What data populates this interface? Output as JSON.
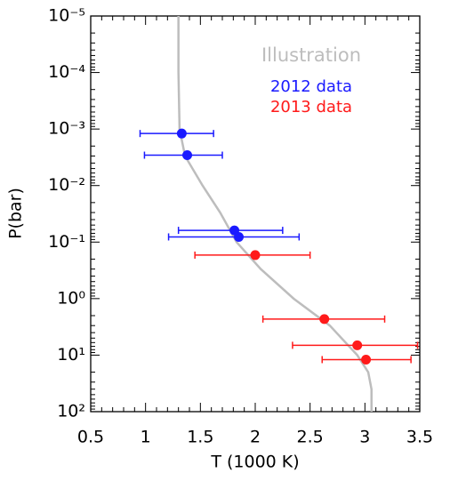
{
  "chart_data": {
    "type": "scatter",
    "xlabel": "T (1000 K)",
    "ylabel": "P(bar)",
    "xlim": [
      0.5,
      3.5
    ],
    "xticks": [
      0.5,
      1.0,
      1.5,
      2.0,
      2.5,
      3.0,
      3.5
    ],
    "ylim": [
      1e-05,
      100
    ],
    "yscale": "log",
    "yinverted": true,
    "yticks": [
      {
        "value": 1e-05,
        "label": "10⁻⁵"
      },
      {
        "value": 0.0001,
        "label": "10⁻⁴"
      },
      {
        "value": 0.001,
        "label": "10⁻³"
      },
      {
        "value": 0.01,
        "label": "10⁻²"
      },
      {
        "value": 0.1,
        "label": "10⁻¹"
      },
      {
        "value": 1,
        "label": "10⁰"
      },
      {
        "value": 10,
        "label": "10¹"
      },
      {
        "value": 100,
        "label": "10²"
      }
    ],
    "legend": "upper right",
    "series": [
      {
        "name": "Illustration",
        "style": "line",
        "color": "#bdbdbd",
        "x": [
          1.3,
          1.3,
          1.31,
          1.36,
          1.52,
          1.68,
          1.83,
          2.05,
          2.35,
          2.68,
          2.93,
          3.03,
          3.06,
          3.06
        ],
        "y": [
          1e-05,
          0.0001,
          0.001,
          0.003,
          0.01,
          0.03,
          0.1,
          0.3,
          1,
          3,
          10,
          20,
          40,
          100
        ]
      },
      {
        "name": "2012 data",
        "style": "points",
        "color": "#1a1aff",
        "x": [
          1.33,
          1.38,
          1.81,
          1.85
        ],
        "y": [
          0.0012,
          0.0029,
          0.062,
          0.081
        ],
        "x_min": [
          0.95,
          0.99,
          1.3,
          1.21
        ],
        "x_max": [
          1.62,
          1.7,
          2.25,
          2.4
        ]
      },
      {
        "name": "2013 data",
        "style": "points",
        "color": "#ff1a1a",
        "x": [
          2.0,
          2.63,
          2.93,
          3.01
        ],
        "y": [
          0.17,
          2.3,
          6.7,
          12
        ],
        "x_min": [
          1.45,
          2.07,
          2.34,
          2.61
        ],
        "x_max": [
          2.5,
          3.18,
          3.48,
          3.42
        ]
      }
    ]
  }
}
